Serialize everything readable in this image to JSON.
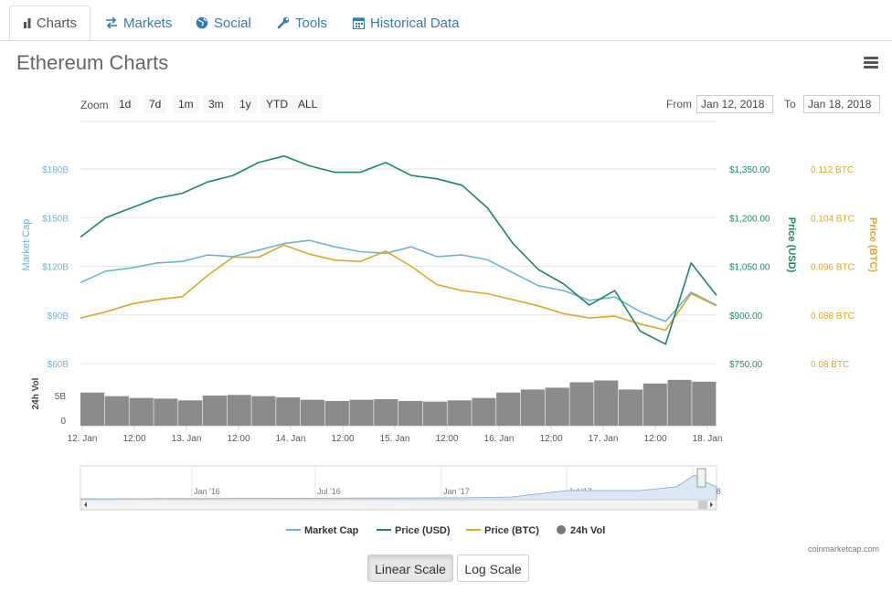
{
  "tabs": [
    {
      "label": "Charts",
      "icon": "bar-chart-icon"
    },
    {
      "label": "Markets",
      "icon": "exchange-icon"
    },
    {
      "label": "Social",
      "icon": "globe-icon"
    },
    {
      "label": "Tools",
      "icon": "wrench-icon"
    },
    {
      "label": "Historical Data",
      "icon": "calendar-icon"
    }
  ],
  "page_title": "Ethereum Charts",
  "zoom": {
    "label": "Zoom",
    "buttons": [
      "1d",
      "7d",
      "1m",
      "3m",
      "1y",
      "YTD",
      "ALL"
    ]
  },
  "range": {
    "from_label": "From",
    "from_value": "Jan 12, 2018",
    "to_label": "To",
    "to_value": "Jan 18, 2018"
  },
  "scale_buttons": {
    "linear": "Linear Scale",
    "log": "Log Scale"
  },
  "credits": "coinmarketcap.com",
  "colors": {
    "market_cap": "#6cb3d9",
    "price_usd": "#1b8a5a",
    "price_btc": "#e0a526",
    "volume": "#777777",
    "link": "#337ab7"
  },
  "chart_data": {
    "type": "line",
    "xlabel": "",
    "x_ticks": [
      "12. Jan",
      "12:00",
      "13. Jan",
      "12:00",
      "14. Jan",
      "12:00",
      "15. Jan",
      "12:00",
      "16. Jan",
      "12:00",
      "17. Jan",
      "12:00",
      "18. Jan"
    ],
    "y_axes": {
      "market_cap": {
        "label": "Market Cap",
        "ticks": [
          "$60B",
          "$90B",
          "$120B",
          "$150B",
          "$180B"
        ],
        "range": [
          60,
          180
        ]
      },
      "price_usd": {
        "label": "Price (USD)",
        "ticks": [
          "$750.00",
          "$900.00",
          "$1,050.00",
          "$1,200.00",
          "$1,350.00"
        ],
        "range": [
          750,
          1350
        ]
      },
      "price_btc": {
        "label": "Price (BTC)",
        "ticks": [
          "0.08 BTC",
          "0.088 BTC",
          "0.096 BTC",
          "0.104 BTC",
          "0.112 BTC"
        ],
        "range": [
          0.08,
          0.112
        ]
      },
      "volume": {
        "label": "24h Vol",
        "ticks": [
          "0",
          "5B"
        ]
      }
    },
    "x": [
      0,
      0.25,
      0.5,
      0.75,
      1,
      1.25,
      1.5,
      1.75,
      2,
      2.25,
      2.5,
      2.75,
      3,
      3.25,
      3.5,
      3.75,
      4,
      4.25,
      4.5,
      4.75,
      5,
      5.25,
      5.5,
      5.75,
      6,
      6.25
    ],
    "series": [
      {
        "name": "Market Cap",
        "axis": "market_cap",
        "values": [
          110,
          117,
          119,
          122,
          123,
          127,
          126,
          130,
          134,
          136,
          132,
          129,
          128,
          132,
          126,
          127,
          124,
          116,
          108,
          105,
          99,
          101,
          92,
          86,
          104,
          96
        ]
      },
      {
        "name": "Price (USD)",
        "axis": "price_usd",
        "values": [
          1140,
          1200,
          1230,
          1260,
          1275,
          1310,
          1330,
          1370,
          1390,
          1360,
          1340,
          1340,
          1370,
          1330,
          1320,
          1300,
          1230,
          1120,
          1040,
          995,
          930,
          975,
          850,
          810,
          1060,
          960
        ]
      },
      {
        "name": "Price (BTC)",
        "axis": "price_btc",
        "values": [
          0.0875,
          0.0885,
          0.0898,
          0.0905,
          0.091,
          0.0945,
          0.0975,
          0.0975,
          0.0995,
          0.098,
          0.097,
          0.0968,
          0.0985,
          0.096,
          0.093,
          0.092,
          0.0915,
          0.0905,
          0.0895,
          0.0882,
          0.0875,
          0.0878,
          0.0865,
          0.0855,
          0.0915,
          0.0895
        ]
      },
      {
        "name": "24h Vol",
        "axis": "volume",
        "values": [
          5.5,
          4.9,
          4.6,
          4.5,
          4.2,
          5.0,
          5.1,
          4.9,
          4.7,
          4.3,
          4.1,
          4.3,
          4.4,
          4.1,
          4.0,
          4.2,
          4.6,
          5.5,
          6.0,
          6.3,
          7.2,
          7.5,
          6.0,
          7.0,
          7.6,
          7.3
        ]
      }
    ],
    "legend": [
      "Market Cap",
      "Price (USD)",
      "Price (BTC)",
      "24h Vol"
    ],
    "legend_position": "bottom",
    "navigator": {
      "labels": [
        "Jan '16",
        "Jul '16",
        "Jan '17",
        "Jul '17",
        "Jan '18"
      ]
    },
    "grid": true
  }
}
